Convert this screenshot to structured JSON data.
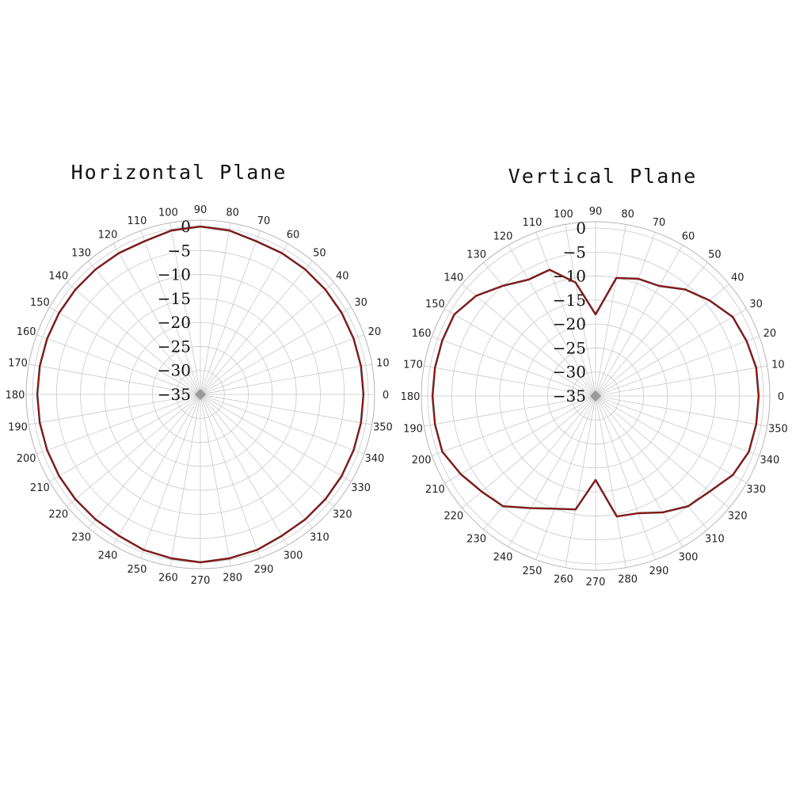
{
  "chart_data": [
    {
      "type": "polar-line",
      "title": "Horizontal Plane",
      "angles": [
        0,
        10,
        20,
        30,
        40,
        50,
        60,
        70,
        80,
        90,
        100,
        110,
        120,
        130,
        140,
        150,
        160,
        170,
        180,
        190,
        200,
        210,
        220,
        230,
        240,
        250,
        260,
        270,
        280,
        290,
        300,
        310,
        320,
        330,
        340,
        350
      ],
      "radial_ticks": [
        0,
        -5,
        -10,
        -15,
        -20,
        -25,
        -30,
        -35
      ],
      "rlim": [
        -35,
        0
      ],
      "series": [
        {
          "color": "#b01010",
          "values": [
            -1,
            -1,
            -1,
            -1,
            -1,
            -1,
            -1,
            -1,
            -0.3,
            0,
            -0.3,
            -1,
            -1,
            -1,
            -1,
            -1,
            -1,
            -1,
            -1,
            -1,
            -1,
            -1,
            -1,
            -1,
            -1,
            -0.5,
            -0.3,
            0,
            -0.3,
            -0.5,
            -1,
            -1,
            -1,
            -1,
            -1,
            -1
          ]
        }
      ],
      "grid": true,
      "angle_direction": "counterclockwise",
      "zero_direction": "east"
    },
    {
      "type": "polar-line",
      "title": "Vertical Plane",
      "angles": [
        0,
        10,
        20,
        30,
        40,
        50,
        60,
        70,
        80,
        90,
        100,
        110,
        120,
        130,
        140,
        150,
        160,
        170,
        180,
        190,
        200,
        210,
        220,
        230,
        240,
        250,
        260,
        270,
        280,
        290,
        300,
        310,
        320,
        330,
        340,
        350
      ],
      "radial_ticks": [
        0,
        -5,
        -10,
        -15,
        -20,
        -25,
        -30,
        -35
      ],
      "rlim": [
        -35,
        0
      ],
      "series": [
        {
          "color": "#b01010",
          "values": [
            -1,
            -1,
            -1.5,
            -2,
            -4,
            -6,
            -8.5,
            -9,
            -10,
            -18,
            -11,
            -7,
            -7,
            -5,
            -2.5,
            -1,
            -1,
            -1,
            -1,
            -1,
            -1,
            -2.5,
            -4,
            -5,
            -8,
            -10,
            -11,
            -17.5,
            -9.5,
            -9,
            -7,
            -5,
            -4,
            -2,
            -1,
            -1
          ]
        }
      ],
      "grid": true,
      "angle_direction": "counterclockwise",
      "zero_direction": "east"
    }
  ]
}
